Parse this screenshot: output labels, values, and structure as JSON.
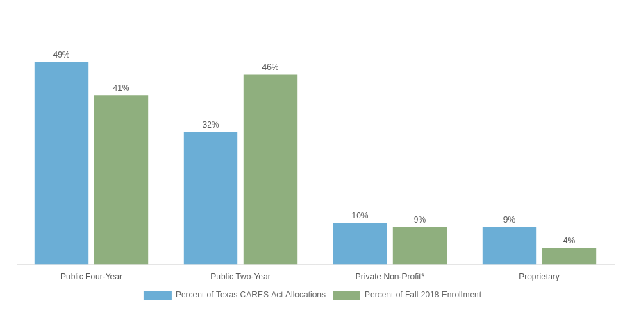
{
  "chart_data": {
    "type": "bar",
    "categories": [
      "Public Four-Year",
      "Public Two-Year",
      "Private Non-Profit*",
      "Proprietary"
    ],
    "series": [
      {
        "name": "Percent of Texas CARES Act Allocations",
        "color": "#6BAED6",
        "values": [
          49,
          32,
          10,
          9
        ],
        "value_labels": [
          "49%",
          "32%",
          "10%",
          "9%"
        ]
      },
      {
        "name": "Percent of Fall 2018 Enrollment",
        "color": "#8FAF7E",
        "values": [
          41,
          46,
          9,
          4
        ],
        "value_labels": [
          "41%",
          "46%",
          "9%",
          "4%"
        ]
      }
    ],
    "ylim": [
      0,
      60
    ],
    "grid": false,
    "legend": "bottom",
    "data_labels": true,
    "tick_labels": "x"
  }
}
